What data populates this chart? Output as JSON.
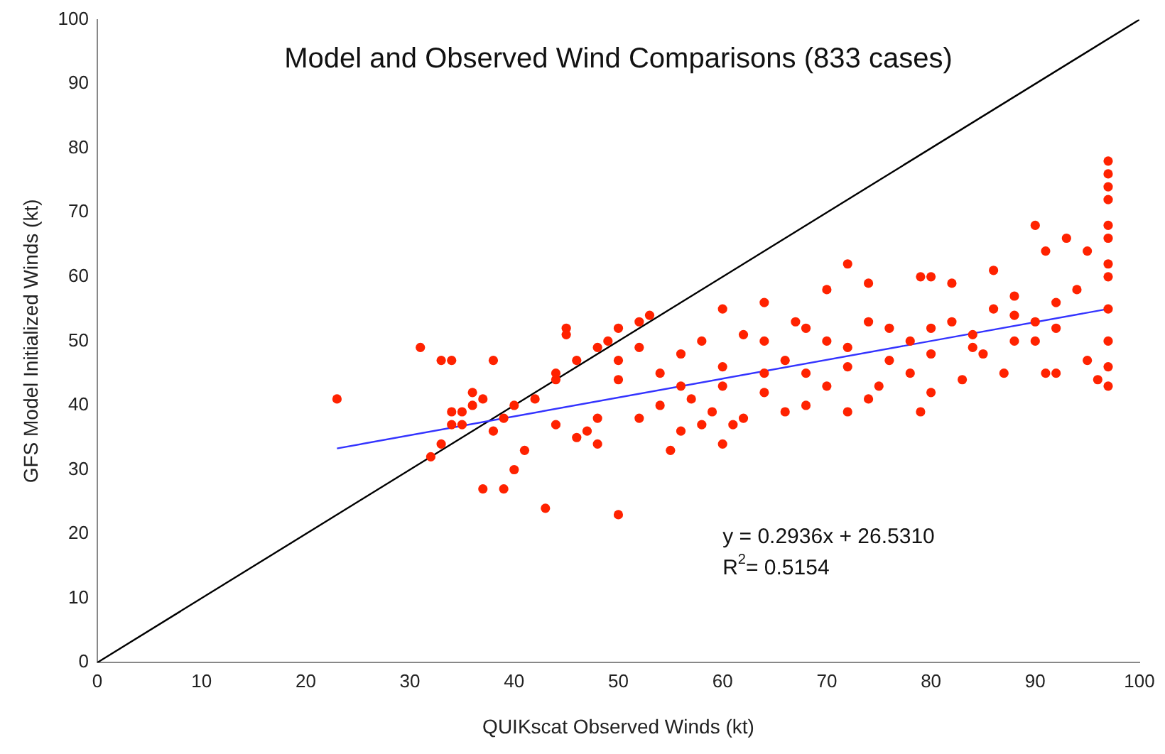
{
  "chart_data": {
    "type": "scatter",
    "title": "Model and Observed Wind Comparisons (833 cases)",
    "xlabel": "QUIKscat Observed Winds (kt)",
    "ylabel": "GFS Model Initialized Winds (kt)",
    "xlim": [
      0,
      100
    ],
    "ylim": [
      0,
      100
    ],
    "xticks": [
      0,
      10,
      20,
      30,
      40,
      50,
      60,
      70,
      80,
      90,
      100
    ],
    "yticks": [
      0,
      10,
      20,
      30,
      40,
      50,
      60,
      70,
      80,
      90,
      100
    ],
    "grid": false,
    "legend": false,
    "annotations": [
      "y = 0.2936x + 26.5310",
      "R$^{2}$= 0.5154"
    ],
    "series": [
      {
        "color": "#ff2200",
        "marker": "circle",
        "x": [
          23,
          31,
          33,
          34,
          32,
          35,
          36,
          37,
          38,
          39,
          40,
          41,
          43,
          50,
          44,
          45,
          45,
          49,
          50,
          52,
          53,
          47,
          48,
          55,
          56,
          58,
          60,
          60,
          64,
          67,
          72,
          70,
          74,
          79,
          80,
          82,
          86,
          88,
          90,
          91,
          93,
          95,
          97,
          97,
          97,
          97,
          97,
          97,
          97,
          97,
          97,
          97,
          97,
          97,
          95,
          96,
          91,
          92,
          90,
          87,
          85,
          83,
          80,
          79,
          78,
          75,
          74,
          72,
          70,
          68,
          66,
          64,
          62,
          61,
          59,
          57,
          54,
          52,
          50,
          48,
          46,
          44,
          42,
          40,
          39,
          38,
          37,
          36,
          35,
          34,
          33,
          34,
          44,
          46,
          48,
          50,
          52,
          54,
          56,
          58,
          60,
          62,
          64,
          66,
          68,
          70,
          72,
          74,
          76,
          78,
          80,
          82,
          84,
          86,
          88,
          90,
          92,
          94,
          56,
          60,
          64,
          68,
          72,
          76,
          80,
          84,
          88,
          92
        ],
        "values": [
          41,
          49,
          47,
          47,
          32,
          37,
          40,
          27,
          47,
          27,
          30,
          33,
          24,
          23,
          44,
          52,
          51,
          50,
          52,
          53,
          54,
          36,
          34,
          33,
          36,
          37,
          34,
          55,
          56,
          53,
          62,
          58,
          59,
          60,
          60,
          59,
          61,
          57,
          68,
          64,
          66,
          64,
          78,
          76,
          74,
          72,
          68,
          66,
          62,
          60,
          55,
          50,
          46,
          43,
          47,
          44,
          45,
          45,
          50,
          45,
          48,
          44,
          42,
          39,
          45,
          43,
          41,
          39,
          43,
          40,
          39,
          42,
          38,
          37,
          39,
          41,
          40,
          38,
          44,
          38,
          35,
          37,
          41,
          40,
          38,
          36,
          41,
          42,
          39,
          39,
          34,
          37,
          45,
          47,
          49,
          47,
          49,
          45,
          48,
          50,
          46,
          51,
          50,
          47,
          52,
          50,
          49,
          53,
          52,
          50,
          52,
          53,
          51,
          55,
          54,
          53,
          56,
          58,
          43,
          43,
          45,
          45,
          46,
          47,
          48,
          49,
          50,
          52
        ]
      },
      {
        "type": "line",
        "color": "#3333ff",
        "marker": "none",
        "x": [
          23,
          97
        ],
        "values": [
          33.3,
          55.0
        ]
      },
      {
        "type": "line",
        "color": "#000000",
        "marker": "none",
        "x": [
          0,
          100
        ],
        "values": [
          0,
          100
        ]
      }
    ]
  }
}
